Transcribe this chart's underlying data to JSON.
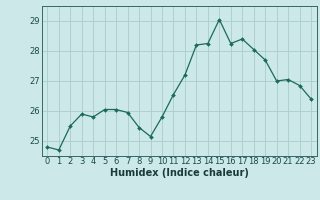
{
  "x": [
    0,
    1,
    2,
    3,
    4,
    5,
    6,
    7,
    8,
    9,
    10,
    11,
    12,
    13,
    14,
    15,
    16,
    17,
    18,
    19,
    20,
    21,
    22,
    23
  ],
  "y": [
    24.8,
    24.7,
    25.5,
    25.9,
    25.8,
    26.05,
    26.05,
    25.95,
    25.45,
    25.15,
    25.8,
    26.55,
    27.2,
    28.2,
    28.25,
    29.05,
    28.25,
    28.4,
    28.05,
    27.7,
    27.0,
    27.05,
    26.85,
    26.4
  ],
  "xlabel": "Humidex (Indice chaleur)",
  "ylim": [
    24.5,
    29.5
  ],
  "xlim": [
    -0.5,
    23.5
  ],
  "yticks": [
    25,
    26,
    27,
    28,
    29
  ],
  "xtick_labels": [
    "0",
    "1",
    "2",
    "3",
    "4",
    "5",
    "6",
    "7",
    "8",
    "9",
    "10",
    "11",
    "12",
    "13",
    "14",
    "15",
    "16",
    "17",
    "18",
    "19",
    "20",
    "21",
    "22",
    "23"
  ],
  "line_color": "#1a6b5a",
  "marker": "D",
  "marker_size": 2.0,
  "bg_color": "#cce8e8",
  "grid_color_major": "#aacccc",
  "grid_color_minor": "#bcd8d8",
  "spine_color": "#336666",
  "label_fontsize": 7.0,
  "tick_fontsize": 6.0
}
